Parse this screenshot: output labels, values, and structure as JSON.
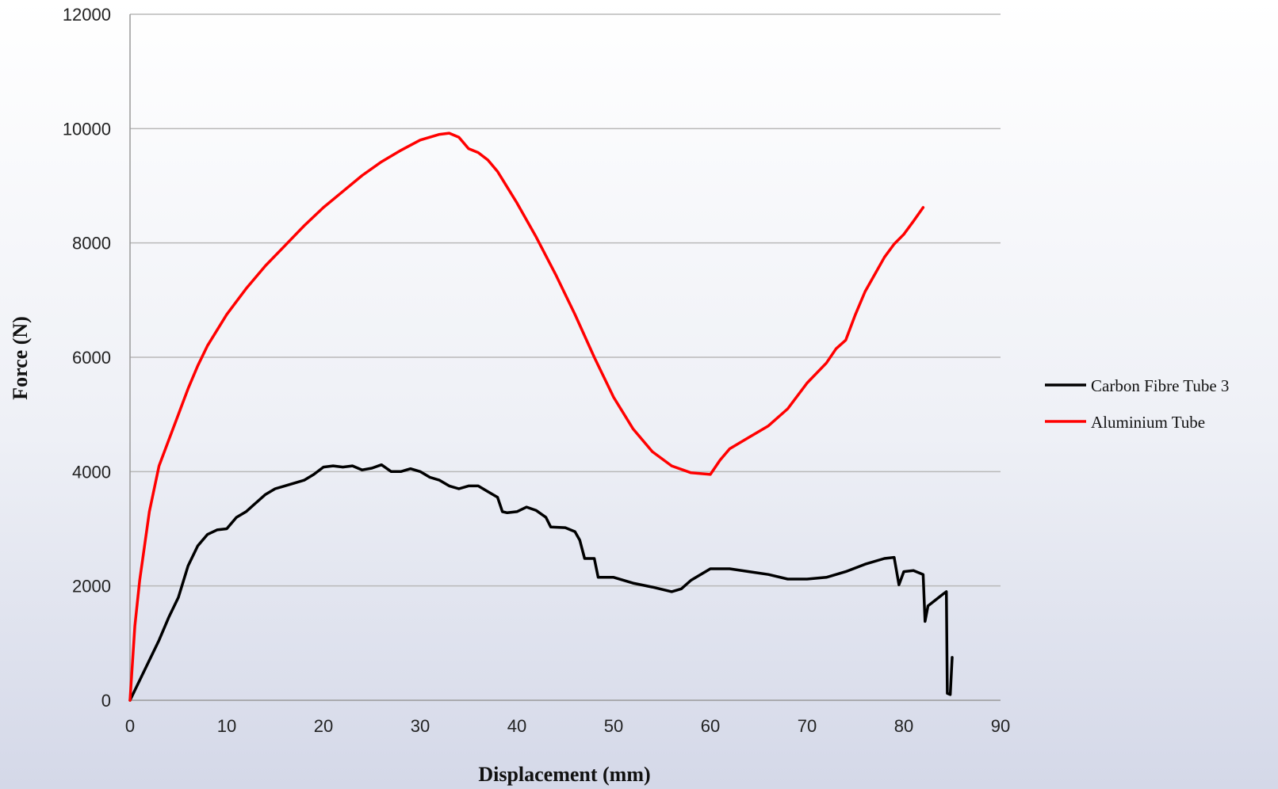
{
  "chart_data": {
    "type": "line",
    "xlabel": "Displacement (mm)",
    "ylabel": "Force (N)",
    "xlim": [
      0,
      90
    ],
    "ylim": [
      0,
      12000
    ],
    "xticks": [
      0,
      10,
      20,
      30,
      40,
      50,
      60,
      70,
      80,
      90
    ],
    "yticks": [
      0,
      2000,
      4000,
      6000,
      8000,
      10000,
      12000
    ],
    "grid": "horizontal",
    "legend_position": "right",
    "series": [
      {
        "name": "Carbon Fibre Tube 3",
        "color": "#000000",
        "points": [
          [
            0,
            0
          ],
          [
            1,
            350
          ],
          [
            2,
            700
          ],
          [
            3,
            1050
          ],
          [
            4,
            1450
          ],
          [
            5,
            1800
          ],
          [
            6,
            2350
          ],
          [
            7,
            2700
          ],
          [
            8,
            2900
          ],
          [
            9,
            2980
          ],
          [
            10,
            3000
          ],
          [
            11,
            3200
          ],
          [
            12,
            3300
          ],
          [
            13,
            3450
          ],
          [
            14,
            3600
          ],
          [
            15,
            3700
          ],
          [
            16,
            3750
          ],
          [
            17,
            3800
          ],
          [
            18,
            3850
          ],
          [
            19,
            3950
          ],
          [
            20,
            4080
          ],
          [
            21,
            4100
          ],
          [
            22,
            4080
          ],
          [
            23,
            4100
          ],
          [
            24,
            4030
          ],
          [
            25,
            4060
          ],
          [
            26,
            4120
          ],
          [
            27,
            4000
          ],
          [
            28,
            4000
          ],
          [
            29,
            4050
          ],
          [
            30,
            4000
          ],
          [
            31,
            3900
          ],
          [
            32,
            3850
          ],
          [
            33,
            3750
          ],
          [
            34,
            3700
          ],
          [
            35,
            3750
          ],
          [
            36,
            3750
          ],
          [
            37,
            3650
          ],
          [
            38,
            3550
          ],
          [
            38.5,
            3300
          ],
          [
            39,
            3280
          ],
          [
            40,
            3300
          ],
          [
            41,
            3380
          ],
          [
            42,
            3320
          ],
          [
            43,
            3200
          ],
          [
            43.5,
            3030
          ],
          [
            45,
            3020
          ],
          [
            46,
            2950
          ],
          [
            46.5,
            2800
          ],
          [
            47,
            2480
          ],
          [
            48,
            2480
          ],
          [
            48.4,
            2150
          ],
          [
            50,
            2150
          ],
          [
            52,
            2050
          ],
          [
            54,
            1980
          ],
          [
            56,
            1900
          ],
          [
            57,
            1950
          ],
          [
            58,
            2100
          ],
          [
            60,
            2300
          ],
          [
            62,
            2300
          ],
          [
            64,
            2250
          ],
          [
            66,
            2200
          ],
          [
            68,
            2120
          ],
          [
            70,
            2120
          ],
          [
            72,
            2150
          ],
          [
            74,
            2250
          ],
          [
            76,
            2380
          ],
          [
            78,
            2480
          ],
          [
            79,
            2500
          ],
          [
            79.5,
            2020
          ],
          [
            80,
            2250
          ],
          [
            81,
            2270
          ],
          [
            82,
            2200
          ],
          [
            82.2,
            1380
          ],
          [
            82.5,
            1650
          ],
          [
            84,
            1850
          ],
          [
            84.4,
            1900
          ],
          [
            84.5,
            120
          ],
          [
            84.8,
            100
          ],
          [
            85,
            750
          ]
        ]
      },
      {
        "name": "Aluminium Tube",
        "color": "#ff0000",
        "points": [
          [
            0,
            0
          ],
          [
            0.5,
            1300
          ],
          [
            1,
            2100
          ],
          [
            2,
            3300
          ],
          [
            3,
            4100
          ],
          [
            4,
            4550
          ],
          [
            5,
            5000
          ],
          [
            6,
            5450
          ],
          [
            7,
            5850
          ],
          [
            8,
            6200
          ],
          [
            10,
            6750
          ],
          [
            12,
            7200
          ],
          [
            14,
            7600
          ],
          [
            16,
            7950
          ],
          [
            18,
            8300
          ],
          [
            20,
            8620
          ],
          [
            22,
            8900
          ],
          [
            24,
            9180
          ],
          [
            26,
            9420
          ],
          [
            28,
            9620
          ],
          [
            30,
            9800
          ],
          [
            32,
            9900
          ],
          [
            33,
            9920
          ],
          [
            34,
            9850
          ],
          [
            35,
            9650
          ],
          [
            36,
            9580
          ],
          [
            37,
            9450
          ],
          [
            38,
            9250
          ],
          [
            40,
            8700
          ],
          [
            42,
            8100
          ],
          [
            44,
            7450
          ],
          [
            46,
            6750
          ],
          [
            48,
            6000
          ],
          [
            50,
            5300
          ],
          [
            52,
            4750
          ],
          [
            54,
            4350
          ],
          [
            56,
            4100
          ],
          [
            58,
            3980
          ],
          [
            60,
            3950
          ],
          [
            61,
            4200
          ],
          [
            62,
            4400
          ],
          [
            64,
            4600
          ],
          [
            66,
            4800
          ],
          [
            68,
            5100
          ],
          [
            70,
            5550
          ],
          [
            72,
            5900
          ],
          [
            73,
            6150
          ],
          [
            74,
            6300
          ],
          [
            75,
            6750
          ],
          [
            76,
            7150
          ],
          [
            77,
            7450
          ],
          [
            78,
            7750
          ],
          [
            79,
            7980
          ],
          [
            80,
            8150
          ],
          [
            81,
            8380
          ],
          [
            82,
            8620
          ]
        ]
      }
    ]
  }
}
